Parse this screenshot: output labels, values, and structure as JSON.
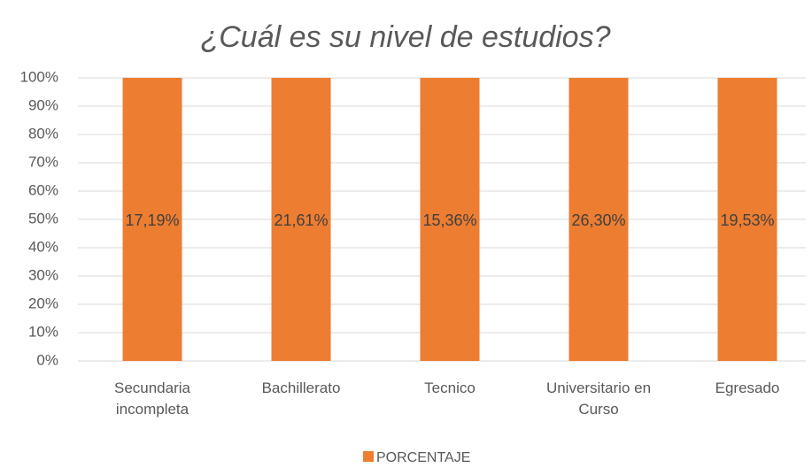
{
  "chart_data": {
    "type": "bar",
    "stacking": "percent",
    "title": "¿Cuál es su nivel de estudios?",
    "categories": [
      "Secundaria incompleta",
      "Bachillerato",
      "Tecnico",
      "Universitario en Curso",
      "Egresado"
    ],
    "series": [
      {
        "name": "PORCENTAJE",
        "color": "#ed7d31",
        "values": [
          17.19,
          21.61,
          15.36,
          26.3,
          19.53
        ],
        "value_labels": [
          "17,19%",
          "21,61%",
          "15,36%",
          "26,30%",
          "19,53%"
        ]
      }
    ],
    "ylim": [
      0,
      100
    ],
    "yticks": [
      {
        "value": 0,
        "label": "0%"
      },
      {
        "value": 10,
        "label": "10%"
      },
      {
        "value": 20,
        "label": "20%"
      },
      {
        "value": 30,
        "label": "30%"
      },
      {
        "value": 40,
        "label": "40%"
      },
      {
        "value": 50,
        "label": "50%"
      },
      {
        "value": 60,
        "label": "60%"
      },
      {
        "value": 70,
        "label": "70%"
      },
      {
        "value": 80,
        "label": "80%"
      },
      {
        "value": 90,
        "label": "90%"
      },
      {
        "value": 100,
        "label": "100%"
      }
    ],
    "grid": true,
    "legend": "bottom"
  }
}
